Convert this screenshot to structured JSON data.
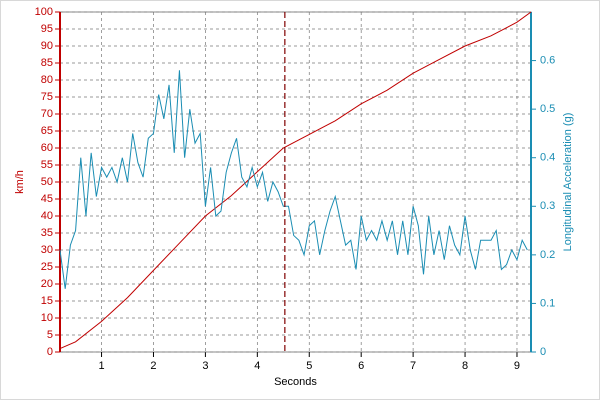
{
  "chart_data": {
    "type": "line",
    "xlabel": "Seconds",
    "ylabel": "km/h",
    "y2label": "Longitudinal Acceleration (g)",
    "xlim": [
      0.2,
      9.27
    ],
    "ylim": [
      0,
      100
    ],
    "y2lim": [
      0,
      0.7
    ],
    "xticks": [
      1,
      2,
      3,
      4,
      5,
      6,
      7,
      8,
      9
    ],
    "yticks": [
      0,
      5,
      10,
      15,
      20,
      25,
      30,
      35,
      40,
      45,
      50,
      55,
      60,
      65,
      70,
      75,
      80,
      85,
      90,
      95,
      100
    ],
    "y2ticks": [
      0,
      0.1,
      0.2,
      0.3,
      0.4,
      0.5,
      0.6
    ],
    "grid": true,
    "cursor_x": 4.53,
    "series": [
      {
        "name": "km/h",
        "color": "#c00000",
        "axis": "y",
        "x": [
          0.2,
          0.5,
          1,
          1.5,
          2,
          2.5,
          3,
          3.5,
          4,
          4.5,
          5,
          5.5,
          6,
          6.5,
          7,
          7.5,
          8,
          8.5,
          9,
          9.27
        ],
        "values": [
          1,
          3,
          9,
          16,
          24,
          32,
          40,
          46,
          53,
          60,
          64,
          68,
          73,
          77,
          82,
          86,
          90,
          93,
          97,
          100
        ]
      },
      {
        "name": "Longitudinal Acceleration (g)",
        "color": "#1a8db3",
        "axis": "y2",
        "x": [
          0.2,
          0.3,
          0.4,
          0.5,
          0.6,
          0.7,
          0.8,
          0.9,
          1.0,
          1.1,
          1.2,
          1.3,
          1.4,
          1.5,
          1.6,
          1.7,
          1.8,
          1.9,
          2.0,
          2.1,
          2.2,
          2.3,
          2.4,
          2.5,
          2.6,
          2.7,
          2.8,
          2.9,
          3.0,
          3.1,
          3.2,
          3.3,
          3.4,
          3.5,
          3.6,
          3.7,
          3.8,
          3.9,
          4.0,
          4.1,
          4.2,
          4.3,
          4.4,
          4.5,
          4.6,
          4.7,
          4.8,
          4.9,
          5.0,
          5.1,
          5.2,
          5.3,
          5.4,
          5.5,
          5.6,
          5.7,
          5.8,
          5.9,
          6.0,
          6.1,
          6.2,
          6.3,
          6.4,
          6.5,
          6.6,
          6.7,
          6.8,
          6.9,
          7.0,
          7.1,
          7.2,
          7.3,
          7.4,
          7.5,
          7.6,
          7.7,
          7.8,
          7.9,
          8.0,
          8.1,
          8.2,
          8.3,
          8.4,
          8.5,
          8.6,
          8.7,
          8.8,
          8.9,
          9.0,
          9.1,
          9.2
        ],
        "values": [
          0.21,
          0.13,
          0.22,
          0.25,
          0.4,
          0.28,
          0.41,
          0.32,
          0.38,
          0.36,
          0.38,
          0.35,
          0.4,
          0.35,
          0.45,
          0.39,
          0.36,
          0.44,
          0.45,
          0.53,
          0.48,
          0.55,
          0.41,
          0.58,
          0.4,
          0.5,
          0.43,
          0.45,
          0.3,
          0.38,
          0.28,
          0.29,
          0.37,
          0.41,
          0.44,
          0.36,
          0.34,
          0.38,
          0.34,
          0.37,
          0.31,
          0.35,
          0.33,
          0.3,
          0.3,
          0.24,
          0.23,
          0.2,
          0.26,
          0.27,
          0.2,
          0.25,
          0.29,
          0.32,
          0.27,
          0.22,
          0.23,
          0.17,
          0.28,
          0.23,
          0.25,
          0.23,
          0.27,
          0.23,
          0.27,
          0.2,
          0.27,
          0.2,
          0.3,
          0.26,
          0.16,
          0.28,
          0.2,
          0.25,
          0.19,
          0.26,
          0.22,
          0.2,
          0.28,
          0.21,
          0.17,
          0.23,
          0.23,
          0.23,
          0.25,
          0.17,
          0.18,
          0.21,
          0.19,
          0.23,
          0.21
        ]
      }
    ]
  }
}
